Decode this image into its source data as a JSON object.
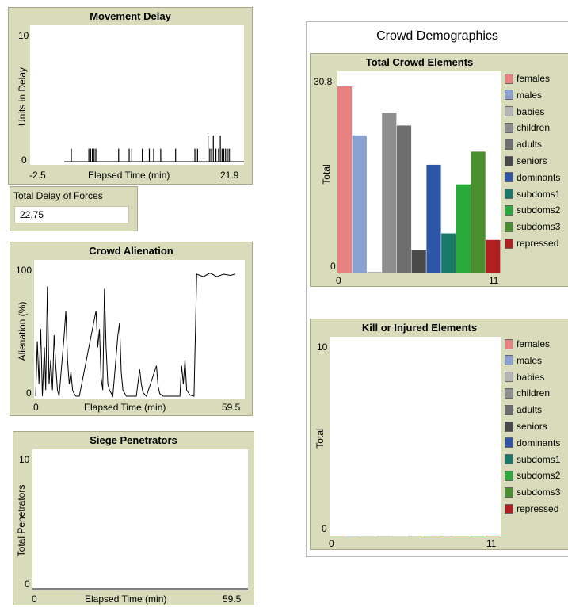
{
  "movement_delay": {
    "title": "Movement Delay",
    "xlabel": "Elapsed Time (min)",
    "ylabel": "Units in Delay",
    "x_min": "-2.5",
    "x_max": "21.9",
    "y_min": "0",
    "y_max": "10"
  },
  "total_delay": {
    "title": "Total Delay of Forces",
    "value": "22.75"
  },
  "crowd_alienation": {
    "title": "Crowd Alienation",
    "xlabel": "Elapsed Time (min)",
    "ylabel": "Alienation (%)",
    "x_min": "0",
    "x_max": "59.5",
    "y_min": "0",
    "y_max": "100"
  },
  "siege_penetrators": {
    "title": "Siege Penetrators",
    "xlabel": "Elapsed Time (min)",
    "ylabel": "Total Penetrators",
    "x_min": "0",
    "x_max": "59.5",
    "y_min": "0",
    "y_max": "10"
  },
  "crowd_demographics": {
    "title": "Crowd Demographics",
    "total_elements": {
      "title": "Total Crowd Elements",
      "ylabel": "Total",
      "x_min": "0",
      "x_max": "11",
      "y_min": "0",
      "y_max": "30.8"
    },
    "kill_injured": {
      "title": "Kill or Injured Elements",
      "ylabel": "Total",
      "x_min": "0",
      "x_max": "11",
      "y_min": "0",
      "y_max": "10"
    }
  },
  "legend": [
    {
      "name": "females",
      "color": "#e88080"
    },
    {
      "name": "males",
      "color": "#8aa0d0"
    },
    {
      "name": "babies",
      "color": "#b4b4b4"
    },
    {
      "name": "children",
      "color": "#8e8e8e"
    },
    {
      "name": "adults",
      "color": "#6e6e6e"
    },
    {
      "name": "seniors",
      "color": "#4a4a4a"
    },
    {
      "name": "dominants",
      "color": "#2f56a6"
    },
    {
      "name": "subdoms1",
      "color": "#1a7a6a"
    },
    {
      "name": "subdoms2",
      "color": "#2aaa3a"
    },
    {
      "name": "subdoms3",
      "color": "#4a8f2e"
    },
    {
      "name": "repressed",
      "color": "#b02020"
    }
  ],
  "chart_data": [
    {
      "type": "bar",
      "title": "Movement Delay",
      "xlabel": "Elapsed Time (min)",
      "ylabel": "Units in Delay",
      "xlim": [
        -2.5,
        21.9
      ],
      "ylim": [
        0,
        10
      ],
      "x": [
        2.2,
        4.2,
        4.4,
        4.6,
        4.8,
        5.0,
        7.6,
        8.8,
        9.1,
        10.3,
        11.1,
        11.6,
        12.4,
        14.1,
        16.3,
        16.6,
        17.8,
        18.0,
        18.2,
        18.4,
        18.7,
        19.0,
        19.2,
        19.4,
        19.6,
        19.8,
        20.0,
        20.2,
        20.4
      ],
      "values": [
        1,
        1,
        1,
        1,
        1,
        1,
        1,
        1,
        1,
        1,
        1,
        1,
        1,
        1,
        1,
        1,
        2,
        1,
        1,
        2,
        1,
        1,
        2,
        1,
        1,
        1,
        1,
        1,
        1
      ]
    },
    {
      "type": "line",
      "title": "Crowd Alienation",
      "xlabel": "Elapsed Time (min)",
      "ylabel": "Alienation (%)",
      "xlim": [
        0,
        59.5
      ],
      "ylim": [
        0,
        100
      ],
      "x": [
        0,
        0.5,
        1.0,
        1.5,
        2.0,
        2.6,
        3.0,
        3.5,
        4.0,
        4.5,
        5.0,
        5.5,
        6.0,
        6.5,
        7.0,
        8.5,
        9.0,
        9.5,
        10.0,
        10.5,
        11.0,
        11.5,
        12.0,
        13.0,
        18.0,
        18.5,
        19.0,
        19.5,
        20.0,
        20.5,
        21.0,
        21.5,
        22.0,
        23.0,
        24.5,
        25.0,
        25.5,
        26.0,
        27.0,
        30.0,
        31.0,
        31.5,
        32.0,
        33.0,
        36.0,
        36.5,
        37.0,
        38.0,
        43.0,
        43.5,
        44.0,
        44.5,
        45.0,
        46.0,
        47.0,
        47.2,
        48.0,
        50.0,
        52.0,
        54.0,
        56.0,
        58.0,
        59.5
      ],
      "values": [
        0,
        45,
        10,
        55,
        0,
        40,
        5,
        90,
        10,
        30,
        5,
        50,
        25,
        5,
        0,
        50,
        70,
        30,
        10,
        20,
        5,
        2,
        0,
        0,
        70,
        40,
        55,
        15,
        5,
        88,
        40,
        10,
        5,
        0,
        50,
        60,
        20,
        5,
        0,
        0,
        22,
        10,
        3,
        0,
        25,
        8,
        2,
        0,
        0,
        25,
        10,
        30,
        5,
        1,
        0,
        0,
        100,
        98,
        101,
        98,
        100,
        99,
        100
      ]
    },
    {
      "type": "line",
      "title": "Siege Penetrators",
      "xlabel": "Elapsed Time (min)",
      "ylabel": "Total Penetrators",
      "xlim": [
        0,
        59.5
      ],
      "ylim": [
        0,
        10
      ],
      "x": [
        0,
        59.5
      ],
      "values": [
        0,
        0
      ]
    },
    {
      "type": "bar",
      "title": "Total Crowd Elements",
      "ylabel": "Total",
      "xlim": [
        0,
        11
      ],
      "ylim": [
        0,
        30.8
      ],
      "categories": [
        "females",
        "males",
        "babies",
        "children",
        "adults",
        "seniors",
        "dominants",
        "subdoms1",
        "subdoms2",
        "subdoms3",
        "repressed"
      ],
      "values": [
        28.5,
        21,
        0,
        24.5,
        22.5,
        3.5,
        16.5,
        6.0,
        13.5,
        18.5,
        5.0
      ]
    },
    {
      "type": "bar",
      "title": "Kill or Injured Elements",
      "ylabel": "Total",
      "xlim": [
        0,
        11
      ],
      "ylim": [
        0,
        10
      ],
      "categories": [
        "females",
        "males",
        "babies",
        "children",
        "adults",
        "seniors",
        "dominants",
        "subdoms1",
        "subdoms2",
        "subdoms3",
        "repressed"
      ],
      "values": [
        0,
        0,
        0,
        0,
        0,
        0,
        0,
        0,
        0,
        0,
        0
      ]
    }
  ]
}
